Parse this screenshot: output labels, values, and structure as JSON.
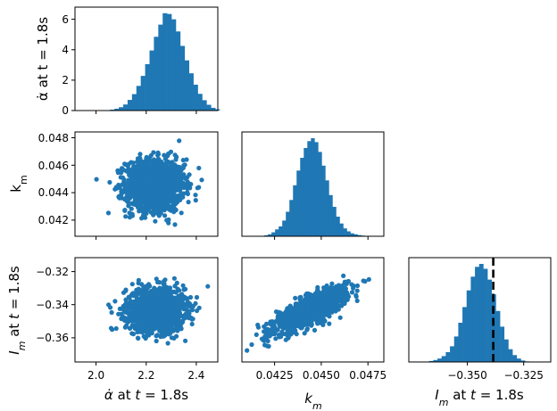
{
  "chart_data": {
    "type": "corner_plot",
    "color": "#1f77b4",
    "variables": [
      {
        "key": "alpha_dot",
        "label": "α̇ at t = 1.8s",
        "range": [
          1.96,
          2.53
        ],
        "ticks": [
          "2.0",
          "2.2",
          "2.4"
        ]
      },
      {
        "key": "k_m",
        "label": "k_m",
        "range": [
          0.0407,
          0.0483
        ],
        "ticks": [
          "0.0425",
          "0.0450",
          "0.0475"
        ]
      },
      {
        "key": "I_m",
        "label": "I_m at t = 1.8s",
        "range": [
          -0.3745,
          -0.3115
        ],
        "ticks": [
          "-0.350",
          "-0.325"
        ]
      }
    ],
    "marginals": [
      {
        "variable": "alpha_dot",
        "y_axis": {
          "ylim": [
            0,
            6.8
          ],
          "ticks": [
            "0",
            "2",
            "4",
            "6"
          ]
        },
        "bins": {
          "start": 2.1,
          "width": 0.0175,
          "counts": [
            0.06,
            0.12,
            0.22,
            0.4,
            0.7,
            1.08,
            1.62,
            2.28,
            3.05,
            3.95,
            4.85,
            5.65,
            6.4,
            6.35,
            6.0,
            5.2,
            4.25,
            3.3,
            2.45,
            1.7,
            1.1,
            0.68,
            0.38,
            0.18,
            0.08
          ]
        }
      },
      {
        "variable": "k_m",
        "bins": {
          "start": 0.0419,
          "width": 0.000192,
          "density": [
            0.01,
            0.02,
            0.04,
            0.07,
            0.1,
            0.16,
            0.25,
            0.37,
            0.52,
            0.67,
            0.8,
            0.9,
            0.97,
            1.0,
            0.96,
            0.86,
            0.72,
            0.57,
            0.42,
            0.3,
            0.2,
            0.13,
            0.08,
            0.05,
            0.03,
            0.02,
            0.012,
            0.007,
            0.003
          ]
        }
      },
      {
        "variable": "I_m",
        "bins": {
          "start": -0.3655,
          "width": 0.00185,
          "density": [
            0.01,
            0.02,
            0.035,
            0.06,
            0.1,
            0.16,
            0.26,
            0.4,
            0.56,
            0.73,
            0.87,
            0.97,
            1.0,
            0.95,
            0.84,
            0.69,
            0.52,
            0.36,
            0.23,
            0.13,
            0.07,
            0.035,
            0.015,
            0.006
          ]
        },
        "reference_line": {
          "value": -0.337,
          "style": "dashed",
          "color": "#000000"
        }
      }
    ],
    "scatter": [
      {
        "x": "alpha_dot",
        "y": "k_m",
        "approx_distribution": {
          "x_mean": 2.28,
          "x_sd": 0.058,
          "y_mean": 0.0444,
          "y_sd": 0.00095,
          "correlation": 0.0
        }
      },
      {
        "x": "alpha_dot",
        "y": "I_m",
        "approx_distribution": {
          "x_mean": 2.28,
          "x_sd": 0.058,
          "y_mean": -0.343,
          "y_sd": 0.0065,
          "correlation": 0.0
        }
      },
      {
        "x": "k_m",
        "y": "I_m",
        "approx_distribution": {
          "x_mean": 0.0444,
          "x_sd": 0.00095,
          "y_mean": -0.343,
          "y_sd": 0.0065,
          "correlation": 0.8
        }
      }
    ],
    "grid": false
  }
}
